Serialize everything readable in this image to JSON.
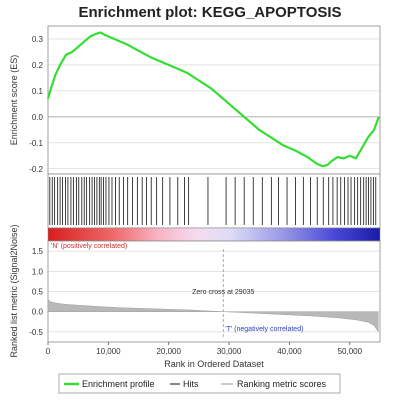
{
  "chart_data": {
    "type": "line",
    "title": "Enrichment plot: KEGG_APOPTOSIS",
    "xlabel": "Rank in Ordered Dataset",
    "xlim": [
      0,
      55000
    ],
    "x_ticks": [
      "0",
      "10,000",
      "20,000",
      "30,000",
      "40,000",
      "50,000"
    ],
    "x_tick_values": [
      0,
      10000,
      20000,
      30000,
      40000,
      50000
    ],
    "panels": {
      "enrichment": {
        "ylabel": "Enrichment score (ES)",
        "ylim": [
          -0.22,
          0.35
        ],
        "y_ticks": [
          "0.3",
          "0.2",
          "0.1",
          "0.0",
          "-0.1",
          "-0.2"
        ],
        "y_tick_values": [
          0.3,
          0.2,
          0.1,
          0.0,
          -0.1,
          -0.2
        ],
        "series": [
          {
            "name": "Enrichment profile",
            "color": "#33dd33",
            "x": [
              0,
              500,
              1200,
              2000,
              3000,
              4000,
              5000,
              6000,
              7000,
              8000,
              8700,
              9500,
              11000,
              13000,
              15000,
              17000,
              19000,
              21000,
              23000,
              25000,
              27000,
              29000,
              31000,
              33000,
              35000,
              37000,
              39000,
              41000,
              43000,
              44500,
              45500,
              46300,
              47000,
              48000,
              49000,
              50000,
              51000,
              52000,
              53000,
              54000,
              54800
            ],
            "y": [
              0.07,
              0.11,
              0.16,
              0.2,
              0.24,
              0.25,
              0.27,
              0.29,
              0.31,
              0.32,
              0.325,
              0.315,
              0.3,
              0.28,
              0.255,
              0.23,
              0.21,
              0.19,
              0.17,
              0.14,
              0.11,
              0.07,
              0.03,
              -0.01,
              -0.05,
              -0.08,
              -0.11,
              -0.13,
              -0.155,
              -0.18,
              -0.19,
              -0.185,
              -0.17,
              -0.155,
              -0.16,
              -0.15,
              -0.16,
              -0.12,
              -0.08,
              -0.05,
              0.0
            ]
          }
        ]
      },
      "hits": {
        "label": "Hits",
        "positions": [
          300,
          700,
          1100,
          1600,
          2000,
          2400,
          2900,
          3300,
          3800,
          4200,
          4700,
          5100,
          5600,
          6000,
          6400,
          6900,
          7300,
          7700,
          8100,
          8500,
          8800,
          9200,
          9600,
          10100,
          10600,
          11200,
          11800,
          12500,
          13200,
          14000,
          14800,
          15600,
          16300,
          17100,
          18000,
          19000,
          20200,
          21500,
          22600,
          23300,
          26500,
          29500,
          31000,
          32500,
          34000,
          35500,
          37000,
          38200,
          39600,
          41000,
          42300,
          43500,
          44600,
          45600,
          46500,
          47200,
          47900,
          48500,
          49100,
          49700,
          50200,
          50800,
          51300,
          51800,
          52300,
          52700,
          53100,
          53500,
          53900,
          54300
        ]
      },
      "ranking": {
        "ylabel": "Ranked list metric (Signal2Noise)",
        "ylim": [
          -0.75,
          1.75
        ],
        "y_ticks": [
          "1.5",
          "1.0",
          "0.5",
          "0.0",
          "-0.5"
        ],
        "y_tick_values": [
          1.5,
          1.0,
          0.5,
          0.0,
          -0.5
        ],
        "zero_cross": 29035,
        "zero_cross_label": "Zero cross at 29035",
        "pos_label": "'N' (positively correlated)",
        "neg_label": "'T' (negatively correlated)",
        "x": [
          0,
          500,
          1500,
          3000,
          5000,
          8000,
          12000,
          16000,
          20000,
          24000,
          27000,
          29035,
          32000,
          36000,
          40000,
          44000,
          48000,
          51000,
          53000,
          54000,
          54700
        ],
        "y": [
          0.3,
          0.24,
          0.21,
          0.18,
          0.16,
          0.13,
          0.1,
          0.08,
          0.06,
          0.04,
          0.015,
          0.0,
          -0.02,
          -0.05,
          -0.08,
          -0.11,
          -0.15,
          -0.2,
          -0.26,
          -0.34,
          -0.5
        ]
      }
    },
    "legend": {
      "placement": "bottom",
      "items": [
        "Enrichment profile",
        "Hits",
        "Ranking metric scores"
      ]
    },
    "colors": {
      "es_line": "#33dd33",
      "hit_line": "#111111",
      "ranking_fill": "#b8b8b8",
      "positive": "#e0303a",
      "negative": "#2a2ad0",
      "grid": "#c8c8c8"
    },
    "grid": true
  }
}
